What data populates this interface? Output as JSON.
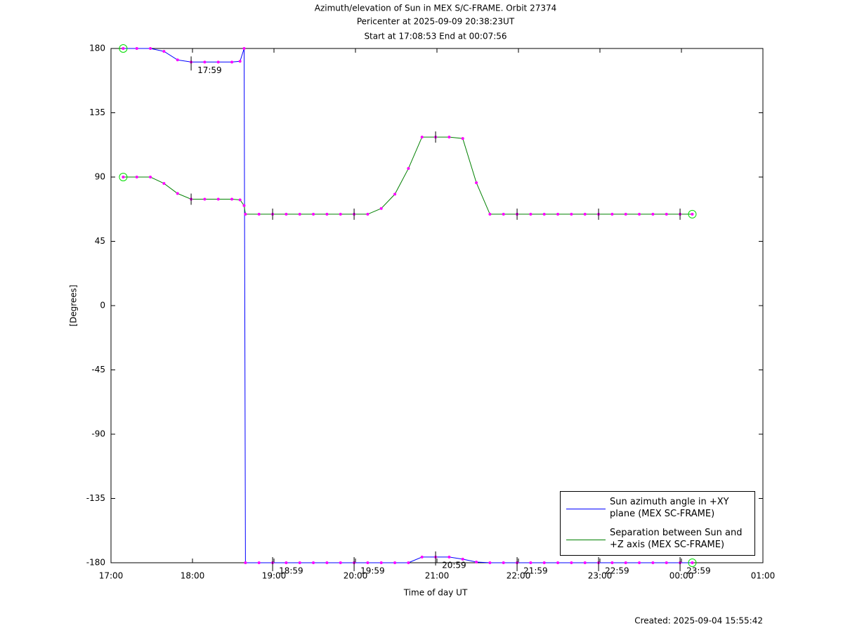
{
  "chart_data": {
    "type": "line",
    "title": "Azimuth/elevation of Sun in MEX S/C-FRAME.  Orbit 27374",
    "subtitle": [
      "Pericenter at 2025-09-09 20:38:23UT",
      "Start at 17:08:53 End at 00:07:56"
    ],
    "xlabel": "Time of day UT",
    "ylabel": "[Degrees]",
    "footer": "Created: 2025-09-04 15:55:42",
    "x": [
      "17:09",
      "17:19",
      "17:29",
      "17:39",
      "17:49",
      "17:59",
      "18:09",
      "18:19",
      "18:29",
      "18:35",
      "18:38",
      "18:39",
      "18:49",
      "18:59",
      "19:09",
      "19:19",
      "19:29",
      "19:39",
      "19:49",
      "19:59",
      "20:09",
      "20:19",
      "20:29",
      "20:39",
      "20:49",
      "20:59",
      "21:09",
      "21:19",
      "21:29",
      "21:39",
      "21:49",
      "21:59",
      "22:09",
      "22:19",
      "22:29",
      "22:39",
      "22:49",
      "22:59",
      "23:09",
      "23:19",
      "23:29",
      "23:39",
      "23:49",
      "23:59",
      "00:08"
    ],
    "series": [
      {
        "name": "Sun azimuth angle in +XY plane (MEX SC-FRAME)",
        "color": "#0000ff",
        "values": [
          180,
          180,
          180,
          178,
          172,
          170.5,
          170.5,
          170.5,
          170.5,
          171,
          180,
          -180,
          -180,
          -180,
          -180,
          -180,
          -180,
          -180,
          -180,
          -180,
          -180,
          -180,
          -180,
          -180,
          -176,
          -176,
          -176,
          -177.5,
          -179.5,
          -180,
          -180,
          -180,
          -180,
          -180,
          -180,
          -180,
          -180,
          -180,
          -180,
          -180,
          -180,
          -180,
          -180,
          -180,
          -180
        ]
      },
      {
        "name": "Separation between Sun and +Z axis (MEX SC-FRAME)",
        "color": "#008000",
        "values": [
          90,
          90,
          90,
          85.5,
          78.5,
          74.5,
          74.5,
          74.5,
          74.5,
          74,
          70,
          64,
          64,
          64,
          64,
          64,
          64,
          64,
          64,
          64,
          64,
          68,
          78,
          96,
          118,
          118,
          118,
          117,
          86,
          64,
          64,
          64,
          64,
          64,
          64,
          64,
          64,
          64,
          64,
          64,
          64,
          64,
          64,
          64,
          64
        ]
      }
    ],
    "annotations": [
      "17:59",
      "18:59",
      "19:59",
      "20:59",
      "21:59",
      "22:59",
      "23:59"
    ],
    "xlim": [
      "17:00",
      "01:00"
    ],
    "xticks": [
      "17:00",
      "18:00",
      "19:00",
      "20:00",
      "21:00",
      "22:00",
      "23:00",
      "00:00",
      "01:00"
    ],
    "ylim": [
      -180,
      180
    ],
    "yticks": [
      180,
      135,
      90,
      45,
      0,
      -45,
      -90,
      -135,
      -180
    ],
    "grid": false
  }
}
